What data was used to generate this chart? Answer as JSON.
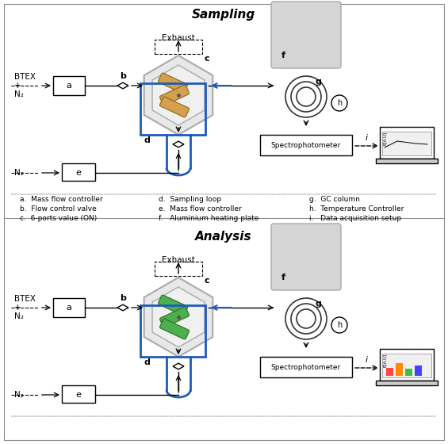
{
  "title_top": "Sampling",
  "title_bottom": "Analysis",
  "bg_color": "#ffffff",
  "blue_color": "#1e5bba",
  "orange_tube_color": "#d4a050",
  "green_tube_color": "#4caf50",
  "legend_col1": [
    "a.  Mass flow controller",
    "b.  Flow control valve",
    "c.  6-ports value (ON)"
  ],
  "legend_col2": [
    "d.  Sampling loop",
    "e.  Mass flow controller",
    "f.   Aluminium heating plate"
  ],
  "legend_col3": [
    "g.  GC column",
    "h.  Temperature Controller",
    "i.   Data acquisition setup"
  ]
}
